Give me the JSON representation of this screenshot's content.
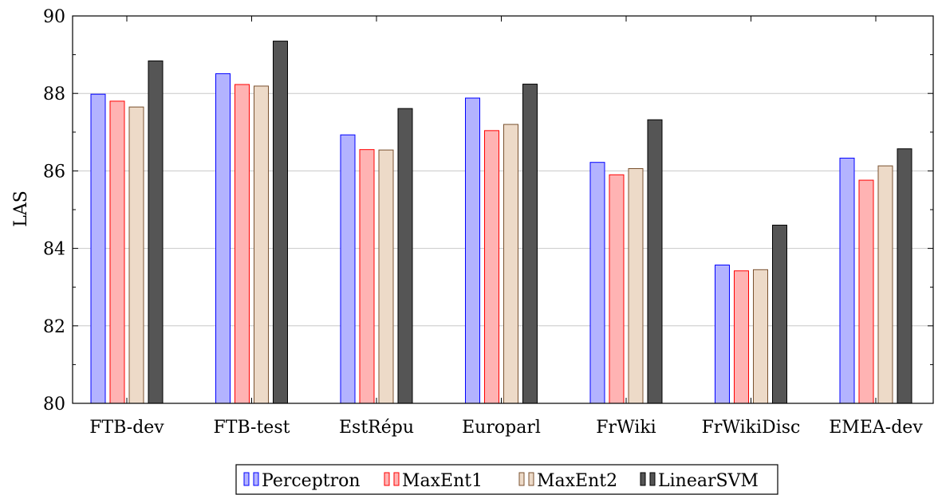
{
  "chart_data": {
    "type": "bar",
    "title": "",
    "xlabel": "",
    "ylabel": "LAS",
    "ylim": [
      80,
      90
    ],
    "yticks": [
      80,
      82,
      84,
      86,
      88,
      90
    ],
    "grid": "horizontal",
    "legend_position": "bottom",
    "categories": [
      "FTB-dev",
      "FTB-test",
      "EstRépu",
      "Europarl",
      "FrWiki",
      "FrWikiDisc",
      "EMEA-dev"
    ],
    "series": [
      {
        "name": "Perceptron",
        "fill": "#b3b3ff",
        "stroke": "#0000ff",
        "values": [
          87.98,
          88.51,
          86.93,
          87.88,
          86.22,
          83.57,
          86.33
        ]
      },
      {
        "name": "MaxEnt1",
        "fill": "#ffb3b3",
        "stroke": "#ff0000",
        "values": [
          87.8,
          88.23,
          86.55,
          87.04,
          85.9,
          83.42,
          85.76
        ]
      },
      {
        "name": "MaxEnt2",
        "fill": "#eddac8",
        "stroke": "#7a5230",
        "values": [
          87.65,
          88.19,
          86.54,
          87.2,
          86.06,
          83.45,
          86.13
        ]
      },
      {
        "name": "LinearSVM",
        "fill": "#555555",
        "stroke": "#000000",
        "values": [
          88.84,
          89.35,
          87.61,
          88.24,
          87.32,
          84.6,
          86.57
        ]
      }
    ]
  }
}
